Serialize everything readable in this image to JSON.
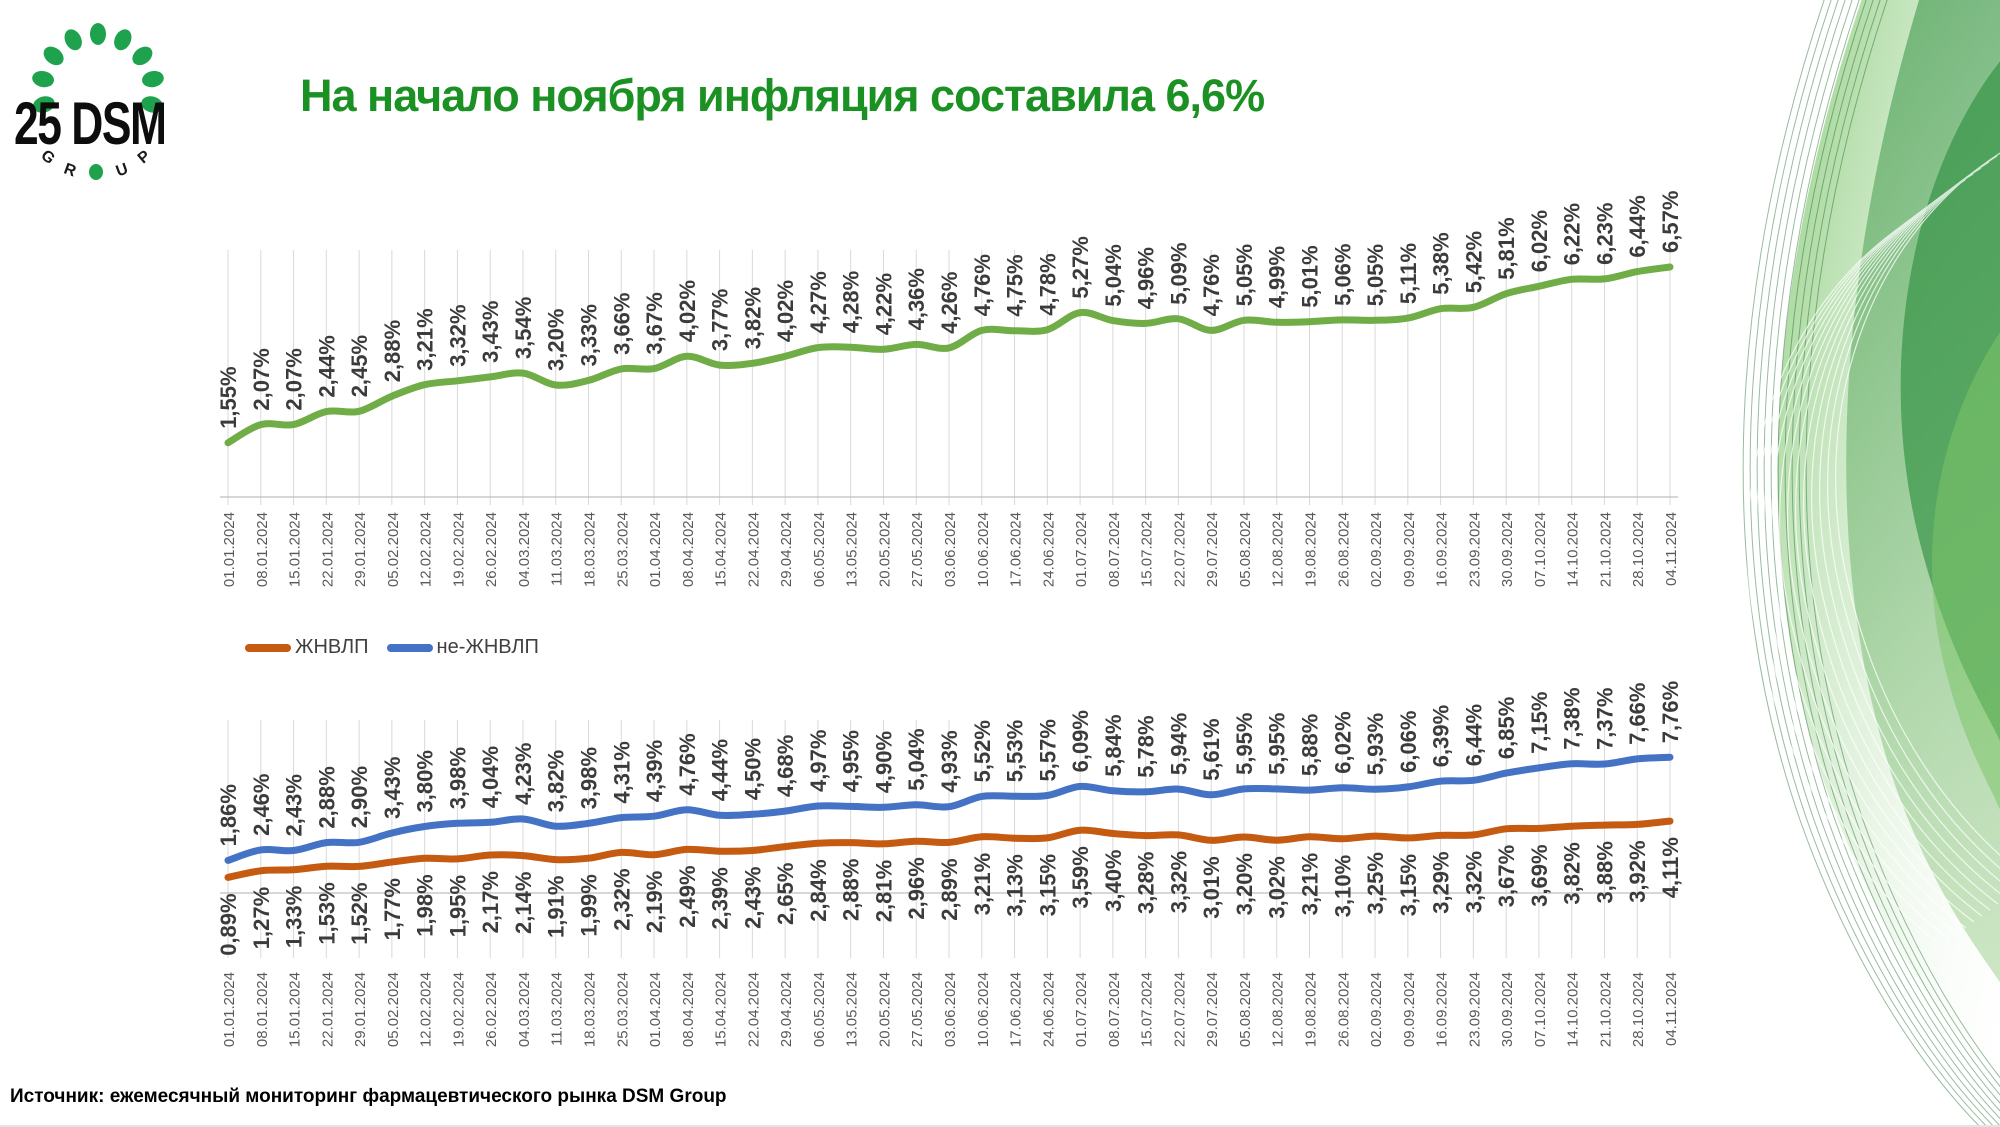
{
  "slide": {
    "title": "На начало ноября инфляция составила 6,6%",
    "title_color": "#1a9122",
    "source": "Источник: ежемесячный мониторинг фармацевтического рынка DSM Group",
    "logo": {
      "text": "25 DSM",
      "letters": [
        "G",
        "R",
        "U",
        "P"
      ],
      "dot_color": "#1ea24d"
    }
  },
  "chart_data": [
    {
      "type": "line",
      "id": "inflation-total",
      "title": "",
      "ylabel": "",
      "xlabel": "",
      "grid": true,
      "legend_position": "none",
      "label_format": "percent-comma-2-decimals",
      "categories": [
        "01.01.2024",
        "08.01.2024",
        "15.01.2024",
        "22.01.2024",
        "29.01.2024",
        "05.02.2024",
        "12.02.2024",
        "19.02.2024",
        "26.02.2024",
        "04.03.2024",
        "11.03.2024",
        "18.03.2024",
        "25.03.2024",
        "01.04.2024",
        "08.04.2024",
        "15.04.2024",
        "22.04.2024",
        "29.04.2024",
        "06.05.2024",
        "13.05.2024",
        "20.05.2024",
        "27.05.2024",
        "03.06.2024",
        "10.06.2024",
        "17.06.2024",
        "24.06.2024",
        "01.07.2024",
        "08.07.2024",
        "15.07.2024",
        "22.07.2024",
        "29.07.2024",
        "05.08.2024",
        "12.08.2024",
        "19.08.2024",
        "26.08.2024",
        "02.09.2024",
        "09.09.2024",
        "16.09.2024",
        "23.09.2024",
        "30.09.2024",
        "07.10.2024",
        "14.10.2024",
        "21.10.2024",
        "28.10.2024",
        "04.11.2024"
      ],
      "series": [
        {
          "id": "total",
          "name": "",
          "color": "#70AD47",
          "label_position": "above",
          "values": [
            1.55,
            2.07,
            2.07,
            2.44,
            2.45,
            2.88,
            3.21,
            3.32,
            3.43,
            3.54,
            3.2,
            3.33,
            3.66,
            3.67,
            4.02,
            3.77,
            3.82,
            4.02,
            4.27,
            4.28,
            4.22,
            4.36,
            4.26,
            4.76,
            4.75,
            4.78,
            5.27,
            5.04,
            4.96,
            5.09,
            4.76,
            5.05,
            4.99,
            5.01,
            5.06,
            5.05,
            5.11,
            5.38,
            5.42,
            5.81,
            6.02,
            6.22,
            6.23,
            6.44,
            6.57
          ]
        }
      ]
    },
    {
      "type": "line",
      "id": "inflation-by-segment",
      "title": "",
      "ylabel": "",
      "xlabel": "",
      "grid": true,
      "legend_position": "top",
      "label_format": "percent-comma-2-decimals",
      "categories": [
        "01.01.2024",
        "08.01.2024",
        "15.01.2024",
        "22.01.2024",
        "29.01.2024",
        "05.02.2024",
        "12.02.2024",
        "19.02.2024",
        "26.02.2024",
        "04.03.2024",
        "11.03.2024",
        "18.03.2024",
        "25.03.2024",
        "01.04.2024",
        "08.04.2024",
        "15.04.2024",
        "22.04.2024",
        "29.04.2024",
        "06.05.2024",
        "13.05.2024",
        "20.05.2024",
        "27.05.2024",
        "03.06.2024",
        "10.06.2024",
        "17.06.2024",
        "24.06.2024",
        "01.07.2024",
        "08.07.2024",
        "15.07.2024",
        "22.07.2024",
        "29.07.2024",
        "05.08.2024",
        "12.08.2024",
        "19.08.2024",
        "26.08.2024",
        "02.09.2024",
        "09.09.2024",
        "16.09.2024",
        "23.09.2024",
        "30.09.2024",
        "07.10.2024",
        "14.10.2024",
        "21.10.2024",
        "28.10.2024",
        "04.11.2024"
      ],
      "series": [
        {
          "id": "zhnvlp",
          "name": "ЖНВЛП",
          "color": "#C55A11",
          "label_position": "below",
          "values": [
            0.89,
            1.27,
            1.33,
            1.53,
            1.52,
            1.77,
            1.98,
            1.95,
            2.17,
            2.14,
            1.91,
            1.99,
            2.32,
            2.19,
            2.49,
            2.39,
            2.43,
            2.65,
            2.84,
            2.88,
            2.81,
            2.96,
            2.89,
            3.21,
            3.13,
            3.15,
            3.59,
            3.4,
            3.28,
            3.32,
            3.01,
            3.2,
            3.02,
            3.21,
            3.1,
            3.25,
            3.15,
            3.29,
            3.32,
            3.67,
            3.69,
            3.82,
            3.88,
            3.92,
            4.11
          ]
        },
        {
          "id": "non-zhnvlp",
          "name": "не-ЖНВЛП",
          "color": "#4472C4",
          "label_position": "above",
          "values": [
            1.86,
            2.46,
            2.43,
            2.88,
            2.9,
            3.43,
            3.8,
            3.98,
            4.04,
            4.23,
            3.82,
            3.98,
            4.31,
            4.39,
            4.76,
            4.44,
            4.5,
            4.68,
            4.97,
            4.95,
            4.9,
            5.04,
            4.93,
            5.52,
            5.53,
            5.57,
            6.09,
            5.84,
            5.78,
            5.94,
            5.61,
            5.95,
            5.95,
            5.88,
            6.02,
            5.93,
            6.06,
            6.39,
            6.44,
            6.85,
            7.15,
            7.38,
            7.37,
            7.66,
            7.76
          ]
        }
      ]
    }
  ]
}
